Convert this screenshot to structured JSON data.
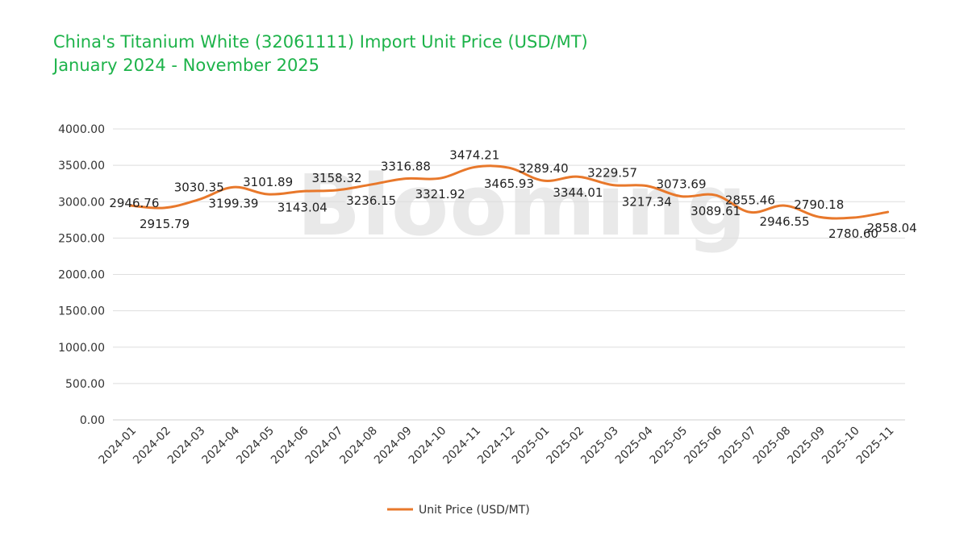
{
  "chart_data": {
    "type": "line",
    "title": "China's Titanium White (32061111) Import Unit Price (USD/MT)",
    "subtitle": "January 2024 - November 2025",
    "watermark": "Blooming",
    "x": [
      "2024-01",
      "2024-02",
      "2024-03",
      "2024-04",
      "2024-05",
      "2024-06",
      "2024-07",
      "2024-08",
      "2024-09",
      "2024-10",
      "2024-11",
      "2024-12",
      "2025-01",
      "2025-02",
      "2025-03",
      "2025-04",
      "2025-05",
      "2025-06",
      "2025-07",
      "2025-08",
      "2025-09",
      "2025-10",
      "2025-11"
    ],
    "series": [
      {
        "name": "Unit Price (USD/MT)",
        "color": "#e8782b",
        "values": [
          2946.76,
          2915.79,
          3030.35,
          3199.39,
          3101.89,
          3143.04,
          3158.32,
          3236.15,
          3316.88,
          3321.92,
          3474.21,
          3465.93,
          3289.4,
          3344.01,
          3229.57,
          3217.34,
          3073.69,
          3089.61,
          2855.46,
          2946.55,
          2790.18,
          2780.6,
          2858.04
        ],
        "labels": [
          "2946.76",
          "2915.79",
          "3030.35",
          "3199.39",
          "3101.89",
          "3143.04",
          "3158.32",
          "3236.15",
          "3316.88",
          "3321.92",
          "3474.21",
          "3465.93",
          "3289.40",
          "3344.01",
          "3229.57",
          "3217.34",
          "3073.69",
          "3089.61",
          "2855.46",
          "2946.55",
          "2790.18",
          "2780.60",
          "2858.04"
        ]
      }
    ],
    "ylim": [
      0,
      4000
    ],
    "yticks": [
      "0.00",
      "500.00",
      "1000.00",
      "1500.00",
      "2000.00",
      "2500.00",
      "3000.00",
      "3500.00",
      "4000.00"
    ],
    "grid": true,
    "legend": "bottom-center"
  }
}
